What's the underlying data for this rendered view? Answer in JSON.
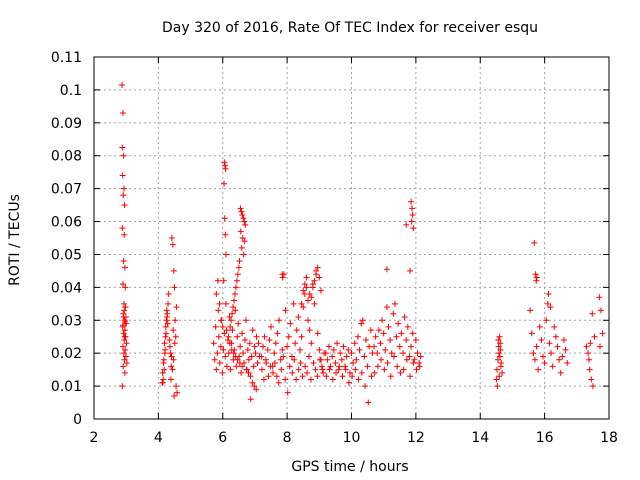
{
  "chart_data": {
    "type": "scatter",
    "title": "Day 320 of 2016, Rate Of TEC Index for receiver esqu",
    "xlabel": "GPS time / hours",
    "ylabel": "ROTI / TECUs",
    "xlim": [
      2,
      18
    ],
    "ylim": [
      0,
      0.11
    ],
    "xticks": [
      2,
      4,
      6,
      8,
      10,
      12,
      14,
      16,
      18
    ],
    "xtick_labels": [
      "2",
      "4",
      "6",
      "8",
      "10",
      "12",
      "14",
      "16",
      "18"
    ],
    "yticks": [
      0,
      0.01,
      0.02,
      0.03,
      0.04,
      0.05,
      0.06,
      0.07,
      0.08,
      0.09,
      0.1,
      0.11
    ],
    "ytick_labels": [
      "0",
      "0.01",
      "0.02",
      "0.03",
      "0.04",
      "0.05",
      "0.06",
      "0.07",
      "0.08",
      "0.09",
      "0.1",
      "0.11"
    ],
    "grid": true,
    "marker": "+",
    "color": "#ff0000",
    "series": [
      {
        "name": "ROTI",
        "x": [
          2.87,
          2.9,
          2.88,
          2.92,
          2.89,
          2.93,
          2.91,
          2.95,
          2.88,
          2.94,
          2.92,
          2.96,
          2.9,
          2.97,
          2.93,
          2.98,
          2.91,
          2.99,
          2.95,
          3.0,
          2.89,
          2.96,
          2.92,
          2.98,
          2.94,
          3.01,
          2.9,
          2.97,
          2.93,
          2.99,
          2.95,
          3.02,
          2.91,
          2.96,
          2.88,
          2.94,
          2.92,
          2.97,
          2.9,
          2.95,
          4.12,
          4.15,
          4.18,
          4.2,
          4.22,
          4.25,
          4.28,
          4.14,
          4.17,
          4.19,
          4.23,
          4.26,
          4.3,
          4.13,
          4.21,
          4.24,
          4.27,
          4.16,
          4.29,
          4.32,
          4.35,
          4.38,
          4.4,
          4.42,
          4.45,
          4.48,
          4.5,
          4.52,
          4.55,
          4.58,
          4.36,
          4.41,
          4.46,
          4.51,
          4.56,
          4.39,
          4.44,
          4.49,
          4.54,
          4.47,
          5.72,
          5.75,
          5.78,
          5.8,
          5.83,
          5.86,
          5.88,
          5.91,
          5.94,
          5.96,
          5.99,
          6.02,
          6.05,
          6.08,
          6.1,
          6.13,
          6.16,
          6.19,
          6.21,
          6.24,
          6.27,
          6.3,
          6.33,
          6.36,
          6.39,
          6.42,
          6.45,
          6.48,
          6.51,
          6.54,
          6.57,
          6.6,
          6.63,
          6.66,
          6.69,
          6.72,
          6.75,
          6.78,
          6.81,
          6.84,
          6.87,
          6.9,
          6.93,
          6.96,
          6.99,
          7.02,
          7.05,
          7.08,
          7.11,
          7.14,
          6.05,
          6.07,
          6.09,
          6.04,
          6.06,
          6.08,
          6.1,
          6.03,
          6.55,
          6.58,
          6.61,
          6.64,
          6.67,
          6.7,
          6.56,
          6.62,
          6.68,
          6.59,
          6.65,
          6.52,
          6.5,
          6.47,
          6.44,
          6.41,
          6.38,
          6.35,
          6.32,
          6.29,
          6.26,
          6.23,
          5.8,
          5.85,
          5.9,
          5.95,
          6.0,
          6.12,
          6.18,
          6.22,
          6.28,
          6.34,
          6.4,
          6.46,
          6.53,
          6.6,
          6.74,
          6.8,
          6.86,
          6.92,
          6.98,
          7.04,
          7.2,
          7.25,
          7.3,
          7.35,
          7.4,
          7.45,
          7.5,
          7.55,
          7.6,
          7.65,
          7.7,
          7.75,
          7.8,
          7.85,
          7.9,
          7.95,
          8.0,
          8.05,
          8.1,
          8.15,
          8.2,
          8.25,
          8.3,
          8.35,
          8.4,
          8.45,
          8.5,
          8.55,
          8.6,
          8.65,
          8.7,
          8.75,
          8.8,
          8.85,
          8.9,
          8.95,
          9.0,
          9.05,
          9.1,
          9.15,
          7.22,
          7.28,
          7.34,
          7.42,
          7.48,
          7.56,
          7.62,
          7.68,
          7.74,
          7.82,
          7.88,
          7.94,
          8.02,
          8.08,
          8.16,
          8.22,
          8.28,
          8.36,
          8.42,
          8.48,
          8.56,
          8.62,
          8.68,
          8.74,
          8.82,
          8.88,
          8.94,
          9.02,
          9.08,
          9.12,
          7.85,
          7.86,
          8.5,
          8.55,
          8.6,
          8.7,
          8.8,
          8.85,
          8.9,
          8.95,
          9.0,
          9.05,
          8.75,
          8.65,
          8.45,
          9.2,
          9.25,
          9.3,
          9.35,
          9.4,
          9.45,
          9.5,
          9.55,
          9.6,
          9.65,
          9.7,
          9.75,
          9.8,
          9.85,
          9.9,
          9.95,
          10.0,
          10.05,
          10.1,
          10.15,
          10.2,
          10.25,
          10.3,
          10.35,
          10.4,
          10.45,
          10.5,
          10.55,
          10.6,
          10.65,
          9.22,
          9.32,
          9.42,
          9.52,
          9.62,
          9.72,
          9.82,
          9.92,
          10.02,
          10.12,
          10.22,
          10.32,
          10.42,
          10.52,
          10.62,
          10.7,
          10.75,
          10.8,
          10.85,
          10.9,
          10.95,
          11.0,
          11.05,
          11.1,
          11.15,
          11.2,
          11.25,
          11.3,
          11.35,
          11.4,
          11.45,
          11.5,
          11.55,
          11.6,
          11.65,
          11.7,
          11.75,
          11.8,
          11.85,
          11.9,
          11.95,
          12.0,
          12.05,
          12.1,
          12.15,
          10.72,
          10.82,
          10.92,
          11.02,
          11.12,
          11.22,
          11.32,
          11.42,
          11.52,
          11.62,
          11.72,
          11.82,
          11.92,
          12.02,
          12.12,
          11.85,
          11.88,
          11.9,
          11.87,
          11.92,
          11.7,
          11.1,
          11.82,
          14.5,
          14.52,
          14.55,
          14.58,
          14.6,
          14.62,
          14.65,
          14.68,
          14.53,
          14.57,
          14.61,
          14.64,
          14.56,
          14.59,
          14.63,
          15.55,
          15.6,
          15.65,
          15.7,
          15.75,
          15.8,
          15.85,
          15.9,
          15.95,
          16.0,
          16.05,
          16.1,
          16.15,
          16.2,
          16.25,
          16.3,
          16.35,
          16.4,
          16.45,
          16.5,
          16.55,
          16.6,
          16.65,
          16.7,
          15.72,
          15.76,
          15.68,
          15.74,
          16.12,
          16.18,
          17.3,
          17.35,
          17.4,
          17.45,
          17.5,
          17.55,
          17.38,
          17.48,
          17.42,
          17.7,
          17.75,
          17.8,
          17.72
        ],
        "y": [
          0.1015,
          0.093,
          0.0825,
          0.08,
          0.074,
          0.07,
          0.068,
          0.065,
          0.058,
          0.056,
          0.048,
          0.046,
          0.041,
          0.04,
          0.035,
          0.034,
          0.032,
          0.031,
          0.03,
          0.029,
          0.028,
          0.027,
          0.026,
          0.025,
          0.024,
          0.023,
          0.022,
          0.021,
          0.02,
          0.019,
          0.018,
          0.017,
          0.016,
          0.014,
          0.01,
          0.033,
          0.031,
          0.0295,
          0.0285,
          0.025,
          0.011,
          0.012,
          0.015,
          0.02,
          0.025,
          0.03,
          0.032,
          0.011,
          0.018,
          0.023,
          0.028,
          0.033,
          0.035,
          0.014,
          0.021,
          0.026,
          0.031,
          0.017,
          0.029,
          0.038,
          0.024,
          0.02,
          0.016,
          0.055,
          0.053,
          0.045,
          0.04,
          0.03,
          0.01,
          0.008,
          0.022,
          0.019,
          0.027,
          0.023,
          0.034,
          0.012,
          0.015,
          0.007,
          0.025,
          0.018,
          0.023,
          0.018,
          0.028,
          0.015,
          0.02,
          0.033,
          0.025,
          0.017,
          0.022,
          0.03,
          0.014,
          0.021,
          0.026,
          0.019,
          0.035,
          0.016,
          0.024,
          0.02,
          0.031,
          0.015,
          0.023,
          0.027,
          0.018,
          0.021,
          0.033,
          0.016,
          0.025,
          0.029,
          0.019,
          0.022,
          0.014,
          0.026,
          0.02,
          0.017,
          0.024,
          0.03,
          0.015,
          0.021,
          0.018,
          0.023,
          0.006,
          0.019,
          0.027,
          0.016,
          0.022,
          0.02,
          0.025,
          0.017,
          0.023,
          0.019,
          0.078,
          0.077,
          0.076,
          0.0715,
          0.061,
          0.056,
          0.05,
          0.042,
          0.064,
          0.063,
          0.062,
          0.061,
          0.06,
          0.059,
          0.057,
          0.055,
          0.054,
          0.052,
          0.05,
          0.048,
          0.046,
          0.044,
          0.042,
          0.04,
          0.038,
          0.036,
          0.034,
          0.032,
          0.03,
          0.028,
          0.038,
          0.042,
          0.035,
          0.03,
          0.028,
          0.027,
          0.025,
          0.023,
          0.021,
          0.02,
          0.019,
          0.018,
          0.017,
          0.016,
          0.015,
          0.014,
          0.013,
          0.011,
          0.01,
          0.009,
          0.019,
          0.022,
          0.025,
          0.017,
          0.021,
          0.024,
          0.028,
          0.016,
          0.02,
          0.023,
          0.026,
          0.03,
          0.018,
          0.021,
          0.044,
          0.033,
          0.022,
          0.025,
          0.029,
          0.019,
          0.035,
          0.023,
          0.027,
          0.031,
          0.021,
          0.025,
          0.034,
          0.038,
          0.04,
          0.03,
          0.027,
          0.023,
          0.041,
          0.035,
          0.044,
          0.026,
          0.021,
          0.018,
          0.015,
          0.02,
          0.015,
          0.012,
          0.018,
          0.013,
          0.016,
          0.014,
          0.017,
          0.013,
          0.011,
          0.015,
          0.019,
          0.012,
          0.008,
          0.016,
          0.014,
          0.018,
          0.012,
          0.015,
          0.017,
          0.013,
          0.016,
          0.014,
          0.019,
          0.012,
          0.017,
          0.015,
          0.013,
          0.018,
          0.016,
          0.014,
          0.044,
          0.043,
          0.039,
          0.041,
          0.043,
          0.038,
          0.04,
          0.042,
          0.045,
          0.046,
          0.043,
          0.039,
          0.037,
          0.036,
          0.035,
          0.02,
          0.018,
          0.022,
          0.016,
          0.019,
          0.021,
          0.017,
          0.023,
          0.015,
          0.02,
          0.018,
          0.022,
          0.016,
          0.019,
          0.021,
          0.014,
          0.02,
          0.017,
          0.023,
          0.018,
          0.025,
          0.021,
          0.029,
          0.03,
          0.019,
          0.024,
          0.016,
          0.022,
          0.027,
          0.02,
          0.013,
          0.015,
          0.012,
          0.014,
          0.016,
          0.013,
          0.015,
          0.011,
          0.013,
          0.015,
          0.012,
          0.014,
          0.01,
          0.005,
          0.013,
          0.022,
          0.025,
          0.02,
          0.027,
          0.023,
          0.03,
          0.026,
          0.021,
          0.034,
          0.028,
          0.024,
          0.02,
          0.032,
          0.035,
          0.025,
          0.029,
          0.022,
          0.026,
          0.02,
          0.031,
          0.024,
          0.028,
          0.019,
          0.022,
          0.026,
          0.018,
          0.024,
          0.02,
          0.017,
          0.019,
          0.014,
          0.016,
          0.018,
          0.015,
          0.017,
          0.013,
          0.019,
          0.016,
          0.014,
          0.015,
          0.018,
          0.013,
          0.017,
          0.015,
          0.016,
          0.066,
          0.064,
          0.062,
          0.06,
          0.058,
          0.059,
          0.0455,
          0.045,
          0.012,
          0.015,
          0.018,
          0.02,
          0.025,
          0.023,
          0.017,
          0.014,
          0.01,
          0.022,
          0.019,
          0.016,
          0.024,
          0.013,
          0.021,
          0.033,
          0.026,
          0.02,
          0.018,
          0.022,
          0.015,
          0.028,
          0.024,
          0.019,
          0.017,
          0.03,
          0.035,
          0.023,
          0.02,
          0.016,
          0.028,
          0.025,
          0.022,
          0.018,
          0.014,
          0.019,
          0.024,
          0.021,
          0.017,
          0.044,
          0.043,
          0.0535,
          0.042,
          0.038,
          0.034,
          0.022,
          0.02,
          0.015,
          0.012,
          0.01,
          0.025,
          0.018,
          0.032,
          0.023,
          0.037,
          0.033,
          0.026,
          0.022
        ]
      }
    ]
  }
}
